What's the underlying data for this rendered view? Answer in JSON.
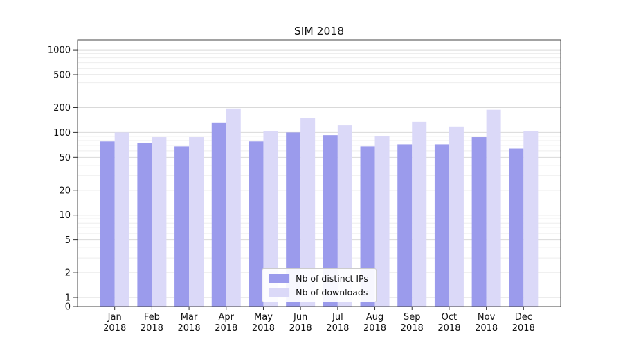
{
  "chart_data": {
    "type": "bar",
    "title": "SIM 2018",
    "categories": [
      "Jan 2018",
      "Feb 2018",
      "Mar 2018",
      "Apr 2018",
      "May 2018",
      "Jun 2018",
      "Jul 2018",
      "Aug 2018",
      "Sep 2018",
      "Oct 2018",
      "Nov 2018",
      "Dec 2018"
    ],
    "series": [
      {
        "name": "Nb of distinct IPs",
        "color": "#9b9bec",
        "values": [
          78,
          75,
          68,
          130,
          78,
          100,
          93,
          68,
          72,
          72,
          88,
          64
        ]
      },
      {
        "name": "Nb of downloads",
        "color": "#dbd9f8",
        "values": [
          100,
          88,
          88,
          195,
          103,
          150,
          122,
          90,
          135,
          118,
          188,
          104
        ]
      }
    ],
    "yscale": "symlog",
    "yticks": [
      0,
      1,
      2,
      5,
      10,
      20,
      50,
      100,
      200,
      500,
      1000
    ],
    "ylim": [
      0,
      1300
    ],
    "xlabel": "",
    "ylabel": "",
    "grid": "on",
    "legend_position": "lower center",
    "colors": {
      "major_grid": "#d9d9d9",
      "minor_grid": "#eeeeee",
      "spine": "#444444",
      "tick_label": "#111111"
    }
  }
}
